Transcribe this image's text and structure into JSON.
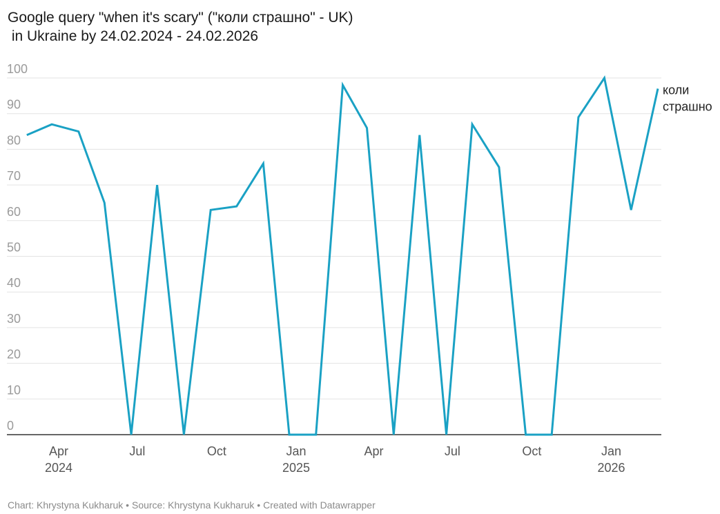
{
  "title": "Google query \"when it's scary\" (\"коли страшно\" - UK)\n in Ukraine by 24.02.2024 - 24.02.2026",
  "footer": {
    "chart_by": "Chart: Khrystyna Kukharuk",
    "source": "Source: Khrystyna Kukharuk",
    "tool": "Created with Datawrapper",
    "separator": " • "
  },
  "chart_data": {
    "type": "line",
    "title": "Google query \"when it's scary\" (\"коли страшно\" - UK)\n in Ukraine by 24.02.2024 - 24.02.2026",
    "xlabel": "",
    "ylabel": "",
    "ylim": [
      0,
      100
    ],
    "yticks": [
      0,
      10,
      20,
      30,
      40,
      50,
      60,
      70,
      80,
      90,
      100
    ],
    "xlim": [
      "2024-02-01",
      "2026-02-28"
    ],
    "xticks": [
      {
        "date": "2024-04-01",
        "label": "Apr",
        "year": "2024"
      },
      {
        "date": "2024-07-01",
        "label": "Jul",
        "year": ""
      },
      {
        "date": "2024-10-01",
        "label": "Oct",
        "year": ""
      },
      {
        "date": "2025-01-01",
        "label": "Jan",
        "year": "2025"
      },
      {
        "date": "2025-04-01",
        "label": "Apr",
        "year": ""
      },
      {
        "date": "2025-07-01",
        "label": "Jul",
        "year": ""
      },
      {
        "date": "2025-10-01",
        "label": "Oct",
        "year": ""
      },
      {
        "date": "2026-01-01",
        "label": "Jan",
        "year": "2026"
      }
    ],
    "grid": true,
    "series": [
      {
        "name": "коли\nстрашно",
        "color": "#1aa1c4",
        "x": [
          "2024-02-24",
          "2024-03-24",
          "2024-04-24",
          "2024-05-24",
          "2024-06-24",
          "2024-07-24",
          "2024-08-24",
          "2024-09-24",
          "2024-10-24",
          "2024-11-24",
          "2024-12-24",
          "2025-01-24",
          "2025-02-24",
          "2025-03-24",
          "2025-04-24",
          "2025-05-24",
          "2025-06-24",
          "2025-07-24",
          "2025-08-24",
          "2025-09-24",
          "2025-10-24",
          "2025-11-24",
          "2025-12-24",
          "2026-01-24",
          "2026-02-24"
        ],
        "values": [
          84,
          87,
          85,
          65,
          0,
          70,
          0,
          63,
          64,
          76,
          0,
          0,
          98,
          86,
          0,
          84,
          0,
          87,
          75,
          0,
          0,
          89,
          100,
          63,
          97
        ]
      }
    ]
  }
}
